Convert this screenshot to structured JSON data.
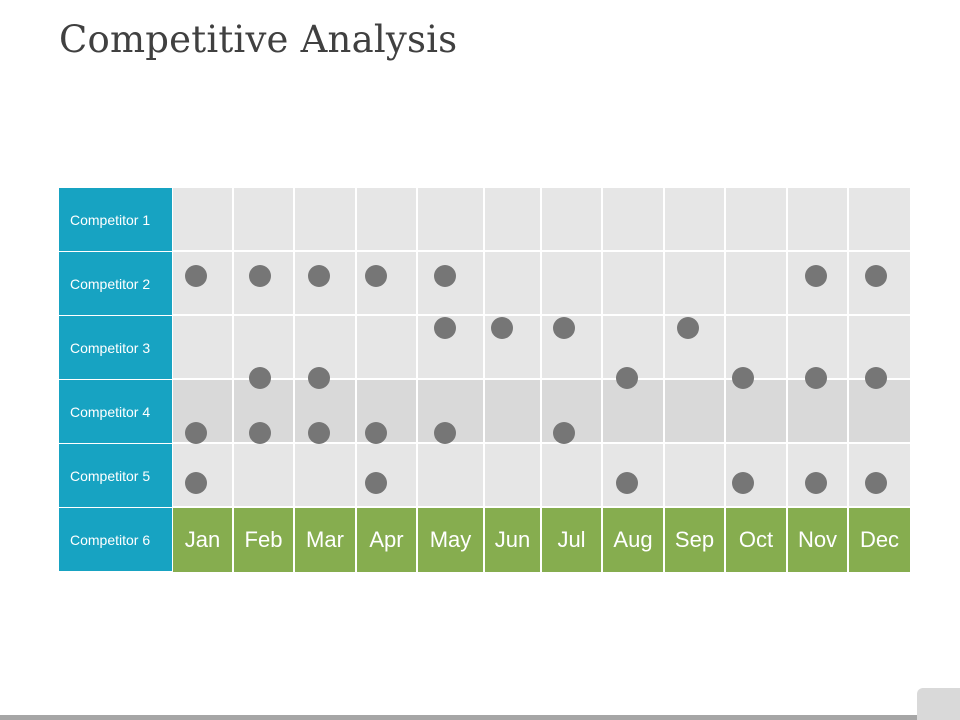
{
  "title": "Competitive Analysis",
  "competitors": [
    "Competitor 1",
    "Competitor 2",
    "Competitor 3",
    "Competitor 4",
    "Competitor 5",
    "Competitor 6"
  ],
  "months": [
    "Jan",
    "Feb",
    "Mar",
    "Apr",
    "May",
    "Jun",
    "Jul",
    "Aug",
    "Sep",
    "Oct",
    "Nov",
    "Dec"
  ],
  "colors": {
    "label_bg": "#17a3c2",
    "month_bg": "#86ad4f",
    "cell_bg": "#e6e6e6",
    "cell_shade": "#d9d9d9",
    "dot": "#767676"
  },
  "markers": [
    {
      "competitor": "Competitor 2",
      "months": [
        "Jan",
        "Feb",
        "Mar",
        "Apr",
        "May",
        "Nov",
        "Dec"
      ]
    },
    {
      "competitor": "Competitor 3",
      "months": [
        "May",
        "Jun",
        "Jul",
        "Sep"
      ]
    },
    {
      "competitor": "Competitor 3/4",
      "months": [
        "Feb",
        "Mar",
        "Aug",
        "Oct",
        "Nov",
        "Dec"
      ]
    },
    {
      "competitor": "Competitor 4",
      "months": [
        "Jan",
        "Feb",
        "Mar",
        "Apr",
        "May",
        "Jul"
      ]
    },
    {
      "competitor": "Competitor 5",
      "months": [
        "Jan",
        "Apr",
        "Aug",
        "Oct",
        "Nov",
        "Dec"
      ]
    }
  ]
}
